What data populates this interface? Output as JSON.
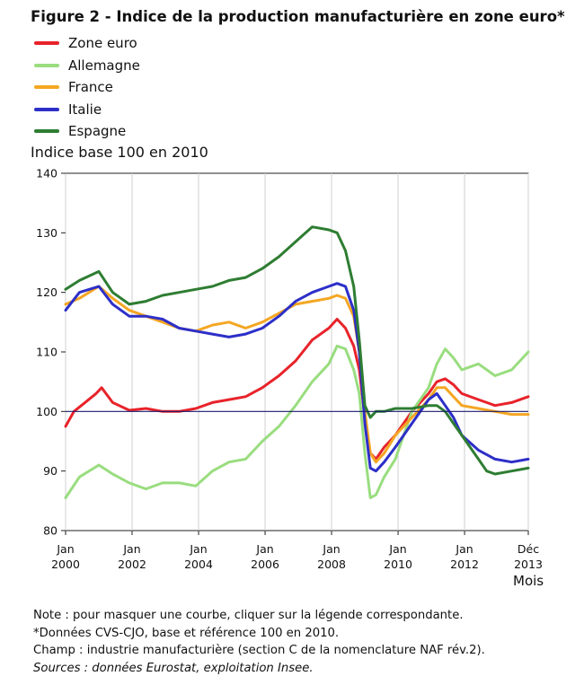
{
  "figure": {
    "title": "Figure 2 - Indice de la production manufacturière en zone euro*",
    "unit_label": "Indice base 100 en 2010",
    "x_unit": "Mois",
    "notes": [
      "Note : pour masquer une courbe, cliquer sur la légende correspondante.",
      "*Données CVS-CJO, base et référence 100 en 2010.",
      "Champ : industrie manufacturière (section C de la nomenclature NAF rév.2)."
    ],
    "sources": "Sources : données Eurostat, exploitation Insee."
  },
  "chart_data": {
    "type": "line",
    "ylabel": "Indice base 100 en 2010",
    "xlabel": "Mois",
    "ylim": [
      80,
      140
    ],
    "yticks": [
      80,
      90,
      100,
      110,
      120,
      130,
      140
    ],
    "xlim": [
      "2000-01",
      "2013-12"
    ],
    "xticks": [
      {
        "date": "2000-01",
        "month": "Jan",
        "year": "2000"
      },
      {
        "date": "2002-01",
        "month": "Jan",
        "year": "2002"
      },
      {
        "date": "2004-01",
        "month": "Jan",
        "year": "2004"
      },
      {
        "date": "2006-01",
        "month": "Jan",
        "year": "2006"
      },
      {
        "date": "2008-01",
        "month": "Jan",
        "year": "2008"
      },
      {
        "date": "2010-01",
        "month": "Jan",
        "year": "2010"
      },
      {
        "date": "2012-01",
        "month": "Jan",
        "year": "2012"
      },
      {
        "date": "2013-12",
        "month": "Déc",
        "year": "2013"
      }
    ],
    "reference_line": 100,
    "grid": "vertical",
    "legend_position": "top-left",
    "series": [
      {
        "name": "Zone euro",
        "color": "#e8232a",
        "points": [
          [
            "2000-01",
            97.5
          ],
          [
            "2000-04",
            100
          ],
          [
            "2000-08",
            101.5
          ],
          [
            "2000-12",
            103
          ],
          [
            "2001-02",
            104
          ],
          [
            "2001-06",
            101.5
          ],
          [
            "2001-12",
            100.2
          ],
          [
            "2002-06",
            100.5
          ],
          [
            "2002-12",
            100
          ],
          [
            "2003-06",
            100
          ],
          [
            "2003-12",
            100.5
          ],
          [
            "2004-06",
            101.5
          ],
          [
            "2004-12",
            102
          ],
          [
            "2005-06",
            102.5
          ],
          [
            "2005-12",
            104
          ],
          [
            "2006-06",
            106
          ],
          [
            "2006-12",
            108.5
          ],
          [
            "2007-06",
            112
          ],
          [
            "2007-12",
            114
          ],
          [
            "2008-03",
            115.5
          ],
          [
            "2008-06",
            114
          ],
          [
            "2008-09",
            111
          ],
          [
            "2008-11",
            107
          ],
          [
            "2009-01",
            99
          ],
          [
            "2009-03",
            93
          ],
          [
            "2009-05",
            92
          ],
          [
            "2009-08",
            94
          ],
          [
            "2009-12",
            96
          ],
          [
            "2010-06",
            100
          ],
          [
            "2010-12",
            103
          ],
          [
            "2011-03",
            105
          ],
          [
            "2011-06",
            105.5
          ],
          [
            "2011-09",
            104.5
          ],
          [
            "2011-12",
            103
          ],
          [
            "2012-06",
            102
          ],
          [
            "2012-09",
            101.5
          ],
          [
            "2012-12",
            101
          ],
          [
            "2013-06",
            101.5
          ],
          [
            "2013-12",
            102.5
          ]
        ]
      },
      {
        "name": "Allemagne",
        "color": "#99dd7f",
        "points": [
          [
            "2000-01",
            85.5
          ],
          [
            "2000-06",
            89
          ],
          [
            "2001-01",
            91
          ],
          [
            "2001-06",
            89.5
          ],
          [
            "2001-12",
            88
          ],
          [
            "2002-06",
            87
          ],
          [
            "2002-12",
            88
          ],
          [
            "2003-06",
            88
          ],
          [
            "2003-12",
            87.5
          ],
          [
            "2004-06",
            90
          ],
          [
            "2004-12",
            91.5
          ],
          [
            "2005-06",
            92
          ],
          [
            "2005-12",
            95
          ],
          [
            "2006-06",
            97.5
          ],
          [
            "2006-12",
            101
          ],
          [
            "2007-06",
            105
          ],
          [
            "2007-12",
            108
          ],
          [
            "2008-03",
            111
          ],
          [
            "2008-06",
            110.5
          ],
          [
            "2008-09",
            107
          ],
          [
            "2008-11",
            103
          ],
          [
            "2009-01",
            93
          ],
          [
            "2009-03",
            85.5
          ],
          [
            "2009-05",
            86
          ],
          [
            "2009-08",
            89
          ],
          [
            "2009-12",
            92
          ],
          [
            "2010-06",
            100
          ],
          [
            "2010-12",
            104
          ],
          [
            "2011-03",
            108
          ],
          [
            "2011-06",
            110.5
          ],
          [
            "2011-09",
            109
          ],
          [
            "2011-12",
            107
          ],
          [
            "2012-06",
            108
          ],
          [
            "2012-12",
            106
          ],
          [
            "2013-06",
            107
          ],
          [
            "2013-12",
            110
          ]
        ]
      },
      {
        "name": "France",
        "color": "#f5a623",
        "points": [
          [
            "2000-01",
            118
          ],
          [
            "2000-06",
            119
          ],
          [
            "2001-01",
            121
          ],
          [
            "2001-06",
            119
          ],
          [
            "2001-12",
            117
          ],
          [
            "2002-06",
            116
          ],
          [
            "2002-12",
            115
          ],
          [
            "2003-06",
            114
          ],
          [
            "2003-12",
            113.5
          ],
          [
            "2004-06",
            114.5
          ],
          [
            "2004-12",
            115
          ],
          [
            "2005-06",
            114
          ],
          [
            "2005-12",
            115
          ],
          [
            "2006-06",
            116.5
          ],
          [
            "2006-12",
            118
          ],
          [
            "2007-06",
            118.5
          ],
          [
            "2007-12",
            119
          ],
          [
            "2008-03",
            119.5
          ],
          [
            "2008-06",
            119
          ],
          [
            "2008-09",
            116
          ],
          [
            "2008-11",
            110
          ],
          [
            "2009-01",
            100
          ],
          [
            "2009-03",
            93
          ],
          [
            "2009-05",
            91.5
          ],
          [
            "2009-08",
            93
          ],
          [
            "2009-12",
            96
          ],
          [
            "2010-06",
            99
          ],
          [
            "2010-12",
            102
          ],
          [
            "2011-03",
            104
          ],
          [
            "2011-06",
            104
          ],
          [
            "2011-09",
            102.5
          ],
          [
            "2011-12",
            101
          ],
          [
            "2012-06",
            100.5
          ],
          [
            "2012-12",
            100
          ],
          [
            "2013-06",
            99.5
          ],
          [
            "2013-12",
            99.5
          ]
        ]
      },
      {
        "name": "Italie",
        "color": "#2d2fc8",
        "points": [
          [
            "2000-01",
            117
          ],
          [
            "2000-06",
            120
          ],
          [
            "2001-01",
            121
          ],
          [
            "2001-06",
            118
          ],
          [
            "2001-12",
            116
          ],
          [
            "2002-06",
            116
          ],
          [
            "2002-12",
            115.5
          ],
          [
            "2003-06",
            114
          ],
          [
            "2003-12",
            113.5
          ],
          [
            "2004-06",
            113
          ],
          [
            "2004-12",
            112.5
          ],
          [
            "2005-06",
            113
          ],
          [
            "2005-12",
            114
          ],
          [
            "2006-06",
            116
          ],
          [
            "2006-12",
            118.5
          ],
          [
            "2007-06",
            120
          ],
          [
            "2007-12",
            121
          ],
          [
            "2008-03",
            121.5
          ],
          [
            "2008-06",
            121
          ],
          [
            "2008-09",
            117
          ],
          [
            "2008-11",
            110
          ],
          [
            "2009-01",
            98
          ],
          [
            "2009-03",
            90.5
          ],
          [
            "2009-05",
            90
          ],
          [
            "2009-08",
            91.5
          ],
          [
            "2009-12",
            94
          ],
          [
            "2010-06",
            98
          ],
          [
            "2010-12",
            102
          ],
          [
            "2011-03",
            103
          ],
          [
            "2011-06",
            101
          ],
          [
            "2011-09",
            99
          ],
          [
            "2011-12",
            96
          ],
          [
            "2012-06",
            93.5
          ],
          [
            "2012-12",
            92
          ],
          [
            "2013-06",
            91.5
          ],
          [
            "2013-12",
            92
          ]
        ]
      },
      {
        "name": "Espagne",
        "color": "#2e7d32",
        "points": [
          [
            "2000-01",
            120.5
          ],
          [
            "2000-06",
            122
          ],
          [
            "2001-01",
            123.5
          ],
          [
            "2001-06",
            120
          ],
          [
            "2001-12",
            118
          ],
          [
            "2002-06",
            118.5
          ],
          [
            "2002-12",
            119.5
          ],
          [
            "2003-06",
            120
          ],
          [
            "2003-12",
            120.5
          ],
          [
            "2004-06",
            121
          ],
          [
            "2004-12",
            122
          ],
          [
            "2005-06",
            122.5
          ],
          [
            "2005-12",
            124
          ],
          [
            "2006-06",
            126
          ],
          [
            "2006-12",
            128.5
          ],
          [
            "2007-06",
            131
          ],
          [
            "2007-12",
            130.5
          ],
          [
            "2008-03",
            130
          ],
          [
            "2008-06",
            127
          ],
          [
            "2008-09",
            121
          ],
          [
            "2008-11",
            112
          ],
          [
            "2009-01",
            101
          ],
          [
            "2009-03",
            99
          ],
          [
            "2009-05",
            100
          ],
          [
            "2009-08",
            100
          ],
          [
            "2009-12",
            100.5
          ],
          [
            "2010-06",
            100.5
          ],
          [
            "2010-12",
            101
          ],
          [
            "2011-03",
            101
          ],
          [
            "2011-06",
            100
          ],
          [
            "2011-09",
            98
          ],
          [
            "2011-12",
            96
          ],
          [
            "2012-06",
            92
          ],
          [
            "2012-09",
            90
          ],
          [
            "2012-12",
            89.5
          ],
          [
            "2013-06",
            90
          ],
          [
            "2013-12",
            90.5
          ]
        ]
      }
    ]
  }
}
